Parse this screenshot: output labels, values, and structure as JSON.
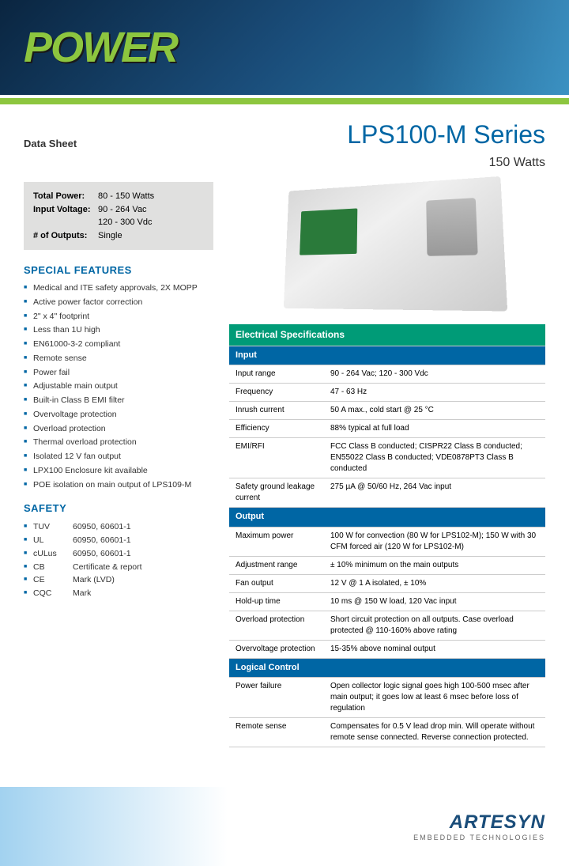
{
  "header": {
    "brand": "POWER"
  },
  "title": {
    "datasheet": "Data Sheet",
    "product": "LPS100-M Series",
    "watts": "150 Watts"
  },
  "summary": {
    "rows": [
      {
        "label": "Total Power:",
        "value": "80 - 150 Watts"
      },
      {
        "label": "Input Voltage:",
        "value": "90 - 264 Vac"
      },
      {
        "label": "",
        "value": "120 - 300 Vdc"
      },
      {
        "label": "# of Outputs:",
        "value": "Single"
      }
    ]
  },
  "features": {
    "title": "SPECIAL FEATURES",
    "items": [
      "Medical and ITE safety approvals, 2X MOPP",
      "Active power factor correction",
      "2\" x 4\" footprint",
      "Less than 1U high",
      "EN61000-3-2 compliant",
      "Remote sense",
      "Power fail",
      "Adjustable main output",
      "Built-in Class B EMI filter",
      "Overvoltage protection",
      "Overload protection",
      "Thermal overload protection",
      "Isolated 12 V fan output",
      "LPX100 Enclosure kit available",
      "POE isolation on main output of LPS109-M"
    ]
  },
  "safety": {
    "title": "SAFETY",
    "items": [
      {
        "std": "TUV",
        "val": "60950, 60601-1"
      },
      {
        "std": "UL",
        "val": "60950, 60601-1"
      },
      {
        "std": "cULus",
        "val": "60950, 60601-1"
      },
      {
        "std": "CB",
        "val": "Certificate & report"
      },
      {
        "std": "CE",
        "val": "Mark (LVD)"
      },
      {
        "std": "CQC",
        "val": "Mark"
      }
    ]
  },
  "electrical": {
    "title": "Electrical Specifications",
    "sections": [
      {
        "header": "Input",
        "rows": [
          {
            "k": "Input range",
            "v": "90 - 264 Vac; 120 - 300 Vdc"
          },
          {
            "k": "Frequency",
            "v": "47 - 63 Hz"
          },
          {
            "k": "Inrush current",
            "v": "50 A max., cold start @ 25 °C"
          },
          {
            "k": "Efficiency",
            "v": "88% typical at full load"
          },
          {
            "k": "EMI/RFI",
            "v": "FCC Class B conducted; CISPR22 Class B conducted; EN55022 Class B conducted; VDE0878PT3 Class B conducted"
          },
          {
            "k": "Safety ground leakage current",
            "v": "275 µA @ 50/60 Hz, 264 Vac input"
          }
        ]
      },
      {
        "header": "Output",
        "rows": [
          {
            "k": "Maximum power",
            "v": "100 W for convection (80 W for LPS102-M); 150 W with 30 CFM forced air (120 W for LPS102-M)"
          },
          {
            "k": "Adjustment range",
            "v": "± 10% minimum on the main outputs"
          },
          {
            "k": "Fan output",
            "v": "12 V @ 1 A isolated, ± 10%"
          },
          {
            "k": "Hold-up time",
            "v": "10 ms @ 150 W load, 120 Vac input"
          },
          {
            "k": "Overload protection",
            "v": "Short circuit protection on all outputs. Case overload protected @ 110-160% above rating"
          },
          {
            "k": "Overvoltage protection",
            "v": "15-35% above nominal output"
          }
        ]
      },
      {
        "header": "Logical  Control",
        "rows": [
          {
            "k": "Power failure",
            "v": "Open collector logic signal goes high 100-500 msec after main output; it goes low at least 6 msec before loss of regulation"
          },
          {
            "k": "Remote sense",
            "v": "Compensates for 0.5 V lead drop min. Will operate without remote sense connected. Reverse connection protected."
          }
        ]
      }
    ]
  },
  "footer": {
    "brand": "ARTESYN",
    "tagline": "EMBEDDED TECHNOLOGIES"
  },
  "colors": {
    "accent_green": "#8dc63f",
    "accent_blue": "#0066a4",
    "table_header": "#009b77"
  }
}
